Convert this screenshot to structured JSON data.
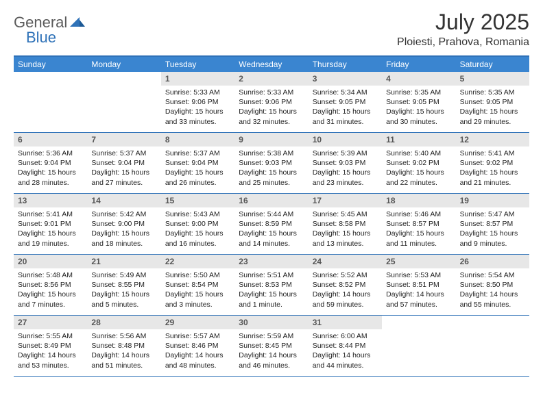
{
  "logo": {
    "text1": "General",
    "text2": "Blue"
  },
  "title": "July 2025",
  "location": "Ploiesti, Prahova, Romania",
  "colors": {
    "header_bg": "#3a85d0",
    "border": "#2f72b8",
    "daynum_bg": "#e7e7e7",
    "logo_gray": "#5a5a5a",
    "logo_blue": "#2f72b8",
    "text": "#222222",
    "background": "#ffffff"
  },
  "typography": {
    "title_fontsize": 32,
    "location_fontsize": 16,
    "dayheader_fontsize": 12,
    "daynum_fontsize": 12,
    "info_fontsize": 10.5
  },
  "day_names": [
    "Sunday",
    "Monday",
    "Tuesday",
    "Wednesday",
    "Thursday",
    "Friday",
    "Saturday"
  ],
  "weeks": [
    [
      null,
      null,
      {
        "n": "1",
        "sunrise": "5:33 AM",
        "sunset": "9:06 PM",
        "daylight": "15 hours and 33 minutes."
      },
      {
        "n": "2",
        "sunrise": "5:33 AM",
        "sunset": "9:06 PM",
        "daylight": "15 hours and 32 minutes."
      },
      {
        "n": "3",
        "sunrise": "5:34 AM",
        "sunset": "9:05 PM",
        "daylight": "15 hours and 31 minutes."
      },
      {
        "n": "4",
        "sunrise": "5:35 AM",
        "sunset": "9:05 PM",
        "daylight": "15 hours and 30 minutes."
      },
      {
        "n": "5",
        "sunrise": "5:35 AM",
        "sunset": "9:05 PM",
        "daylight": "15 hours and 29 minutes."
      }
    ],
    [
      {
        "n": "6",
        "sunrise": "5:36 AM",
        "sunset": "9:04 PM",
        "daylight": "15 hours and 28 minutes."
      },
      {
        "n": "7",
        "sunrise": "5:37 AM",
        "sunset": "9:04 PM",
        "daylight": "15 hours and 27 minutes."
      },
      {
        "n": "8",
        "sunrise": "5:37 AM",
        "sunset": "9:04 PM",
        "daylight": "15 hours and 26 minutes."
      },
      {
        "n": "9",
        "sunrise": "5:38 AM",
        "sunset": "9:03 PM",
        "daylight": "15 hours and 25 minutes."
      },
      {
        "n": "10",
        "sunrise": "5:39 AM",
        "sunset": "9:03 PM",
        "daylight": "15 hours and 23 minutes."
      },
      {
        "n": "11",
        "sunrise": "5:40 AM",
        "sunset": "9:02 PM",
        "daylight": "15 hours and 22 minutes."
      },
      {
        "n": "12",
        "sunrise": "5:41 AM",
        "sunset": "9:02 PM",
        "daylight": "15 hours and 21 minutes."
      }
    ],
    [
      {
        "n": "13",
        "sunrise": "5:41 AM",
        "sunset": "9:01 PM",
        "daylight": "15 hours and 19 minutes."
      },
      {
        "n": "14",
        "sunrise": "5:42 AM",
        "sunset": "9:00 PM",
        "daylight": "15 hours and 18 minutes."
      },
      {
        "n": "15",
        "sunrise": "5:43 AM",
        "sunset": "9:00 PM",
        "daylight": "15 hours and 16 minutes."
      },
      {
        "n": "16",
        "sunrise": "5:44 AM",
        "sunset": "8:59 PM",
        "daylight": "15 hours and 14 minutes."
      },
      {
        "n": "17",
        "sunrise": "5:45 AM",
        "sunset": "8:58 PM",
        "daylight": "15 hours and 13 minutes."
      },
      {
        "n": "18",
        "sunrise": "5:46 AM",
        "sunset": "8:57 PM",
        "daylight": "15 hours and 11 minutes."
      },
      {
        "n": "19",
        "sunrise": "5:47 AM",
        "sunset": "8:57 PM",
        "daylight": "15 hours and 9 minutes."
      }
    ],
    [
      {
        "n": "20",
        "sunrise": "5:48 AM",
        "sunset": "8:56 PM",
        "daylight": "15 hours and 7 minutes."
      },
      {
        "n": "21",
        "sunrise": "5:49 AM",
        "sunset": "8:55 PM",
        "daylight": "15 hours and 5 minutes."
      },
      {
        "n": "22",
        "sunrise": "5:50 AM",
        "sunset": "8:54 PM",
        "daylight": "15 hours and 3 minutes."
      },
      {
        "n": "23",
        "sunrise": "5:51 AM",
        "sunset": "8:53 PM",
        "daylight": "15 hours and 1 minute."
      },
      {
        "n": "24",
        "sunrise": "5:52 AM",
        "sunset": "8:52 PM",
        "daylight": "14 hours and 59 minutes."
      },
      {
        "n": "25",
        "sunrise": "5:53 AM",
        "sunset": "8:51 PM",
        "daylight": "14 hours and 57 minutes."
      },
      {
        "n": "26",
        "sunrise": "5:54 AM",
        "sunset": "8:50 PM",
        "daylight": "14 hours and 55 minutes."
      }
    ],
    [
      {
        "n": "27",
        "sunrise": "5:55 AM",
        "sunset": "8:49 PM",
        "daylight": "14 hours and 53 minutes."
      },
      {
        "n": "28",
        "sunrise": "5:56 AM",
        "sunset": "8:48 PM",
        "daylight": "14 hours and 51 minutes."
      },
      {
        "n": "29",
        "sunrise": "5:57 AM",
        "sunset": "8:46 PM",
        "daylight": "14 hours and 48 minutes."
      },
      {
        "n": "30",
        "sunrise": "5:59 AM",
        "sunset": "8:45 PM",
        "daylight": "14 hours and 46 minutes."
      },
      {
        "n": "31",
        "sunrise": "6:00 AM",
        "sunset": "8:44 PM",
        "daylight": "14 hours and 44 minutes."
      },
      null,
      null
    ]
  ],
  "labels": {
    "sunrise": "Sunrise:",
    "sunset": "Sunset:",
    "daylight": "Daylight:"
  }
}
